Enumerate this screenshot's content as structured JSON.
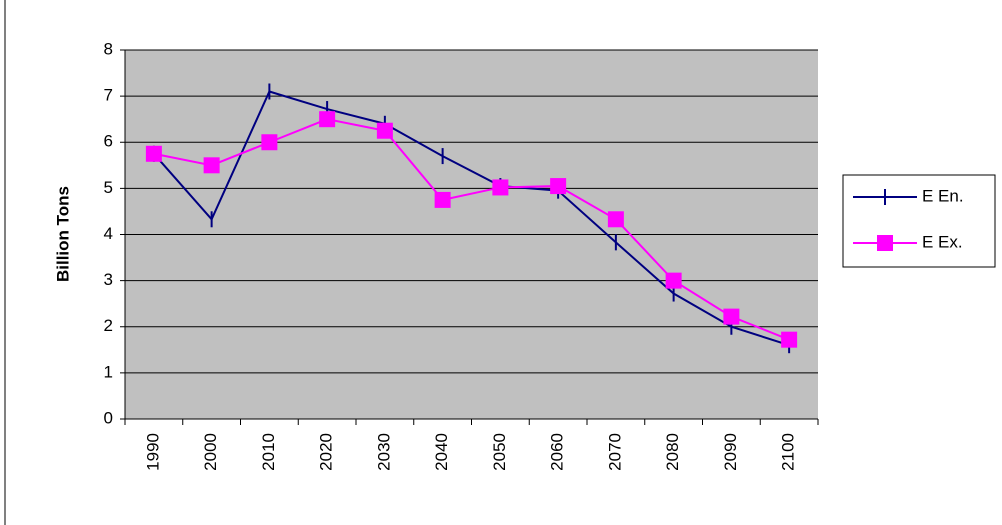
{
  "chart_data": {
    "type": "line",
    "y_label": "Billion Tons",
    "categories": [
      "1990",
      "2000",
      "2010",
      "2020",
      "2030",
      "2040",
      "2050",
      "2060",
      "2070",
      "2080",
      "2090",
      "2100"
    ],
    "series": [
      {
        "name": "E En.",
        "color": "#000080",
        "values": [
          5.75,
          4.33,
          7.1,
          6.72,
          6.4,
          5.7,
          5.05,
          4.95,
          3.83,
          2.72,
          2.0,
          1.6
        ]
      },
      {
        "name": "E Ex.",
        "color": "#ff00ff",
        "values": [
          5.75,
          5.5,
          6.0,
          6.5,
          6.25,
          4.75,
          5.02,
          5.05,
          4.33,
          3.0,
          2.22,
          1.72
        ]
      }
    ],
    "ylim": [
      0,
      8
    ],
    "yticks": [
      0,
      1,
      2,
      3,
      4,
      5,
      6,
      7,
      8
    ],
    "grid": true,
    "legend": "right"
  }
}
